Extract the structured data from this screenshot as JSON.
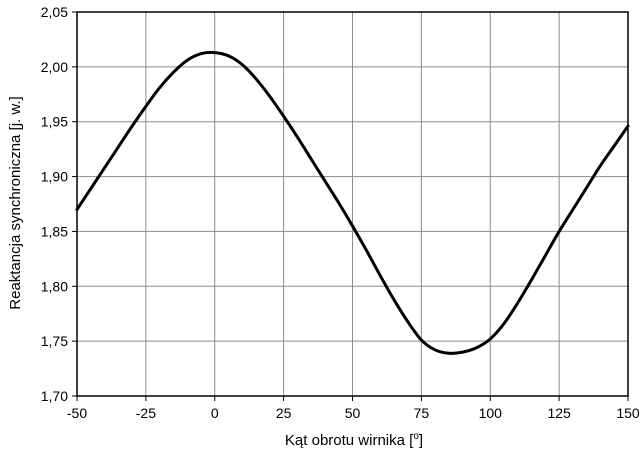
{
  "chart_data": {
    "type": "line",
    "title": "",
    "xlabel": "Kąt obrotu wirnika [",
    "xlabel_unit": "o",
    "xlabel_close": "]",
    "ylabel": "Reaktancja synchroniczna [j. w.]",
    "xlim": [
      -50,
      150
    ],
    "ylim": [
      1.7,
      2.05
    ],
    "x_ticks": [
      -50,
      -25,
      0,
      25,
      50,
      75,
      100,
      125,
      150
    ],
    "y_ticks": [
      1.7,
      1.75,
      1.8,
      1.85,
      1.9,
      1.95,
      2.0,
      2.05
    ],
    "x_tick_labels": [
      "-50",
      "-25",
      "0",
      "25",
      "50",
      "75",
      "100",
      "125",
      "150"
    ],
    "y_tick_labels": [
      "1,70",
      "1,75",
      "1,80",
      "1,85",
      "1,90",
      "1,95",
      "2,00",
      "2,05"
    ],
    "grid": true,
    "line_color": "#000000",
    "series": [
      {
        "x": [
          -50,
          -45,
          -40,
          -35,
          -30,
          -25,
          -20,
          -15,
          -10,
          -5,
          0,
          5,
          10,
          15,
          20,
          25,
          30,
          35,
          40,
          45,
          50,
          55,
          60,
          65,
          70,
          75,
          80,
          85,
          90,
          95,
          100,
          105,
          110,
          115,
          120,
          125,
          130,
          135,
          140,
          145,
          150
        ],
        "values": [
          1.87,
          1.889,
          1.908,
          1.927,
          1.946,
          1.964,
          1.981,
          1.995,
          2.006,
          2.012,
          2.013,
          2.01,
          2.002,
          1.989,
          1.973,
          1.955,
          1.936,
          1.916,
          1.896,
          1.876,
          1.855,
          1.833,
          1.81,
          1.788,
          1.768,
          1.751,
          1.742,
          1.739,
          1.74,
          1.744,
          1.752,
          1.766,
          1.785,
          1.806,
          1.828,
          1.85,
          1.87,
          1.89,
          1.91,
          1.928,
          1.946
        ]
      }
    ]
  }
}
